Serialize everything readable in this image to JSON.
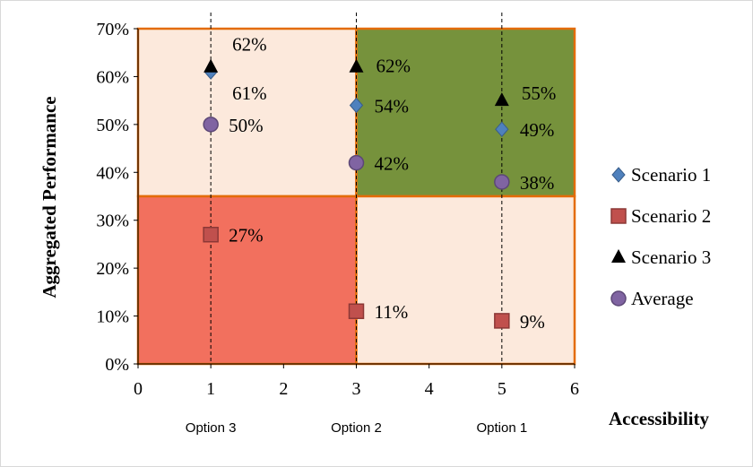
{
  "chart_data": {
    "type": "scatter",
    "xlabel": "Accessibility",
    "ylabel": "Aggregated Performance",
    "xlim": [
      0,
      6
    ],
    "ylim": [
      0,
      70
    ],
    "x_ticks": [
      "0",
      "1",
      "2",
      "3",
      "4",
      "5",
      "6"
    ],
    "y_ticks": [
      "0%",
      "10%",
      "20%",
      "30%",
      "40%",
      "50%",
      "60%",
      "70%"
    ],
    "grid": false,
    "legend_position": "right",
    "option_labels": [
      {
        "x": 1,
        "label": "Option 3"
      },
      {
        "x": 3,
        "label": "Option 2"
      },
      {
        "x": 5,
        "label": "Option 1"
      }
    ],
    "quadrants": [
      {
        "name": "top-left",
        "x": [
          0,
          3
        ],
        "y": [
          35,
          70
        ],
        "color": "#fce9dc"
      },
      {
        "name": "top-right",
        "x": [
          3,
          6
        ],
        "y": [
          35,
          70
        ],
        "color": "#76923c"
      },
      {
        "name": "bottom-left",
        "x": [
          0,
          3
        ],
        "y": [
          0,
          35
        ],
        "color": "#f2705e"
      },
      {
        "name": "bottom-right",
        "x": [
          3,
          6
        ],
        "y": [
          0,
          35
        ],
        "color": "#fce9dc"
      }
    ],
    "series": [
      {
        "name": "Scenario 1",
        "marker": "diamond",
        "color": "#4f81bd",
        "points": [
          {
            "x": 1,
            "y": 61,
            "label": "61%"
          },
          {
            "x": 3,
            "y": 54,
            "label": "54%"
          },
          {
            "x": 5,
            "y": 49,
            "label": "49%"
          }
        ]
      },
      {
        "name": "Scenario 2",
        "marker": "square",
        "color": "#c0504d",
        "points": [
          {
            "x": 1,
            "y": 27,
            "label": "27%"
          },
          {
            "x": 3,
            "y": 11,
            "label": "11%"
          },
          {
            "x": 5,
            "y": 9,
            "label": "9%"
          }
        ]
      },
      {
        "name": "Scenario 3",
        "marker": "triangle",
        "color": "#000000",
        "points": [
          {
            "x": 1,
            "y": 62,
            "label": "62%"
          },
          {
            "x": 3,
            "y": 62,
            "label": "62%"
          },
          {
            "x": 5,
            "y": 55,
            "label": "55%"
          }
        ]
      },
      {
        "name": "Average",
        "marker": "circle",
        "color": "#8064a2",
        "points": [
          {
            "x": 1,
            "y": 50,
            "label": "50%"
          },
          {
            "x": 3,
            "y": 42,
            "label": "42%"
          },
          {
            "x": 5,
            "y": 38,
            "label": "38%"
          }
        ]
      }
    ]
  }
}
